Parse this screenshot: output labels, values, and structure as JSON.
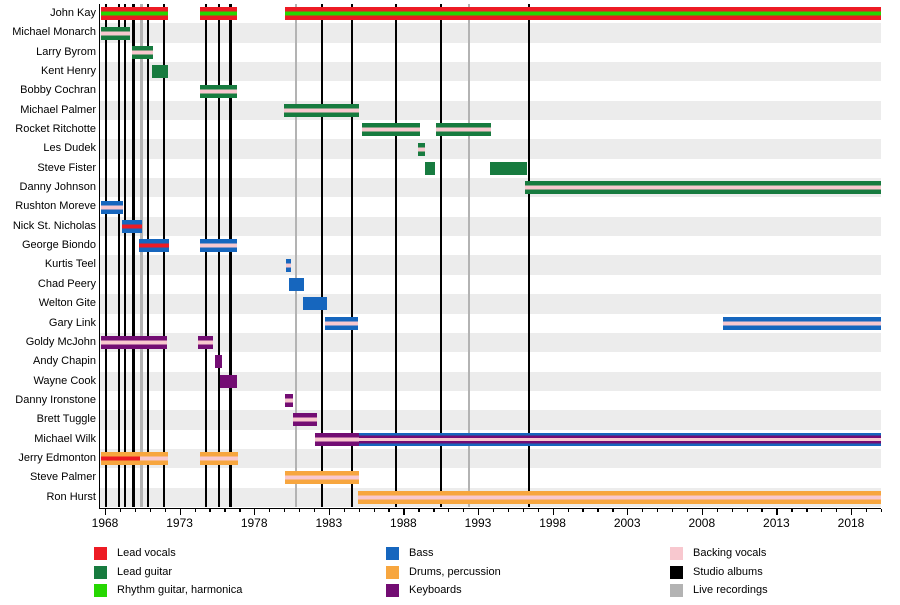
{
  "chart_data": {
    "type": "timeline",
    "description": "Band membership timeline, roles shown as colored bars per member, vertical lines mark album releases",
    "x_axis": {
      "major_tick_years": [
        1968,
        1973,
        1978,
        1983,
        1988,
        1993,
        1998,
        2003,
        2008,
        2013,
        2018
      ],
      "minor_tick_every_year_from": 1968,
      "minor_tick_every_year_to": 2020,
      "axis_min_year": 1967.6,
      "axis_max_year": 2020.1
    },
    "legend": [
      {
        "key": "lead_vocals",
        "label": "Lead vocals",
        "color": "#ed1b24",
        "column": 1
      },
      {
        "key": "lead_guitar",
        "label": "Lead guitar",
        "color": "#177b3f",
        "column": 1
      },
      {
        "key": "rhythm_guitar",
        "label": "Rhythm guitar, harmonica",
        "color": "#26d701",
        "column": 1
      },
      {
        "key": "bass",
        "label": "Bass",
        "color": "#1666be",
        "column": 2
      },
      {
        "key": "drums",
        "label": "Drums, percussion",
        "color": "#f7a63f",
        "column": 2
      },
      {
        "key": "keyboards",
        "label": "Keyboards",
        "color": "#730d73",
        "column": 2
      },
      {
        "key": "backing_vocals",
        "label": "Backing vocals",
        "color": "#f8c8cf",
        "column": 3
      },
      {
        "key": "studio_albums",
        "label": "Studio albums",
        "color": "#000000",
        "column": 3
      },
      {
        "key": "live_recordings",
        "label": "Live recordings",
        "color": "#b3b3b3",
        "column": 3
      }
    ],
    "members": [
      {
        "name": "John Kay",
        "bars": [
          {
            "start": 1967.7,
            "end": 1972.25,
            "roles": [
              "lead_vocals",
              "rhythm_guitar"
            ]
          },
          {
            "start": 1974.35,
            "end": 1976.85,
            "roles": [
              "lead_vocals",
              "rhythm_guitar"
            ]
          },
          {
            "start": 1980.05,
            "end": 2020.0,
            "roles": [
              "lead_vocals",
              "rhythm_guitar"
            ]
          }
        ]
      },
      {
        "name": "Michael Monarch",
        "bars": [
          {
            "start": 1967.7,
            "end": 1969.65,
            "roles": [
              "lead_guitar",
              "backing_vocals"
            ]
          }
        ]
      },
      {
        "name": "Larry Byrom",
        "bars": [
          {
            "start": 1969.8,
            "end": 1971.25,
            "roles": [
              "lead_guitar",
              "backing_vocals"
            ]
          }
        ]
      },
      {
        "name": "Kent Henry",
        "bars": [
          {
            "start": 1971.15,
            "end": 1972.25,
            "roles": [
              "lead_guitar"
            ]
          }
        ]
      },
      {
        "name": "Bobby Cochran",
        "bars": [
          {
            "start": 1974.35,
            "end": 1976.85,
            "roles": [
              "lead_guitar",
              "backing_vocals"
            ]
          }
        ]
      },
      {
        "name": "Michael Palmer",
        "bars": [
          {
            "start": 1980.0,
            "end": 1985.0,
            "roles": [
              "lead_guitar",
              "backing_vocals"
            ]
          }
        ]
      },
      {
        "name": "Rocket Ritchotte",
        "bars": [
          {
            "start": 1985.2,
            "end": 1989.1,
            "roles": [
              "lead_guitar",
              "backing_vocals"
            ]
          },
          {
            "start": 1990.2,
            "end": 1993.9,
            "roles": [
              "lead_guitar",
              "backing_vocals"
            ]
          }
        ]
      },
      {
        "name": "Les Dudek",
        "bars": [
          {
            "start": 1989.0,
            "end": 1989.45,
            "roles": [
              "lead_guitar",
              "backing_vocals"
            ]
          }
        ]
      },
      {
        "name": "Steve Fister",
        "bars": [
          {
            "start": 1989.45,
            "end": 1990.15,
            "roles": [
              "lead_guitar"
            ]
          },
          {
            "start": 1993.8,
            "end": 1996.3,
            "roles": [
              "lead_guitar"
            ]
          }
        ]
      },
      {
        "name": "Danny Johnson",
        "bars": [
          {
            "start": 1996.15,
            "end": 2020.0,
            "roles": [
              "lead_guitar",
              "backing_vocals"
            ]
          }
        ]
      },
      {
        "name": "Rushton Moreve",
        "bars": [
          {
            "start": 1967.7,
            "end": 1969.2,
            "roles": [
              "bass",
              "backing_vocals"
            ]
          }
        ]
      },
      {
        "name": "Nick St. Nicholas",
        "bars": [
          {
            "start": 1969.15,
            "end": 1970.45,
            "roles": [
              "bass",
              "lead_vocals"
            ]
          }
        ]
      },
      {
        "name": "George Biondo",
        "bars": [
          {
            "start": 1970.25,
            "end": 1972.3,
            "roles": [
              "bass",
              "lead_vocals"
            ]
          },
          {
            "start": 1974.35,
            "end": 1976.85,
            "roles": [
              "bass",
              "backing_vocals"
            ]
          }
        ]
      },
      {
        "name": "Kurtis Teel",
        "bars": [
          {
            "start": 1980.1,
            "end": 1980.5,
            "roles": [
              "bass",
              "backing_vocals"
            ]
          }
        ]
      },
      {
        "name": "Chad Peery",
        "bars": [
          {
            "start": 1980.35,
            "end": 1981.35,
            "roles": [
              "bass"
            ]
          }
        ]
      },
      {
        "name": "Welton Gite",
        "bars": [
          {
            "start": 1981.3,
            "end": 1982.85,
            "roles": [
              "bass"
            ]
          }
        ]
      },
      {
        "name": "Gary Link",
        "bars": [
          {
            "start": 1982.75,
            "end": 1984.95,
            "roles": [
              "bass",
              "backing_vocals"
            ]
          },
          {
            "start": 2009.4,
            "end": 2020.0,
            "roles": [
              "bass",
              "backing_vocals"
            ]
          }
        ]
      },
      {
        "name": "Goldy McJohn",
        "bars": [
          {
            "start": 1967.7,
            "end": 1972.15,
            "roles": [
              "keyboards",
              "backing_vocals"
            ]
          },
          {
            "start": 1974.25,
            "end": 1975.25,
            "roles": [
              "keyboards",
              "backing_vocals"
            ]
          }
        ]
      },
      {
        "name": "Andy Chapin",
        "bars": [
          {
            "start": 1975.35,
            "end": 1975.85,
            "roles": [
              "keyboards"
            ]
          }
        ]
      },
      {
        "name": "Wayne Cook",
        "bars": [
          {
            "start": 1975.7,
            "end": 1976.85,
            "roles": [
              "keyboards"
            ]
          }
        ]
      },
      {
        "name": "Danny Ironstone",
        "bars": [
          {
            "start": 1980.05,
            "end": 1980.6,
            "roles": [
              "keyboards",
              "backing_vocals"
            ]
          }
        ]
      },
      {
        "name": "Brett Tuggle",
        "bars": [
          {
            "start": 1980.6,
            "end": 1982.2,
            "roles": [
              "keyboards",
              "backing_vocals"
            ]
          }
        ]
      },
      {
        "name": "Michael Wilk",
        "bars": [
          {
            "start": 1982.1,
            "end": 1985.0,
            "roles": [
              "keyboards",
              "backing_vocals"
            ]
          },
          {
            "start": 1985.0,
            "end": 2020.0,
            "roles": [
              "bass",
              "keyboards",
              "backing_vocals"
            ]
          }
        ]
      },
      {
        "name": "Jerry Edmonton",
        "bars": [
          {
            "start": 1967.7,
            "end": 1970.35,
            "roles": [
              "drums",
              "lead_vocals"
            ]
          },
          {
            "start": 1970.35,
            "end": 1972.25,
            "roles": [
              "drums",
              "backing_vocals"
            ]
          },
          {
            "start": 1974.35,
            "end": 1976.9,
            "roles": [
              "drums",
              "backing_vocals"
            ]
          }
        ]
      },
      {
        "name": "Steve Palmer",
        "bars": [
          {
            "start": 1980.05,
            "end": 1985.05,
            "roles": [
              "drums",
              "backing_vocals"
            ]
          }
        ]
      },
      {
        "name": "Ron Hurst",
        "bars": [
          {
            "start": 1984.95,
            "end": 2020.0,
            "roles": [
              "drums",
              "backing_vocals"
            ]
          }
        ]
      }
    ],
    "releases": {
      "studio_album_years": [
        1968.05,
        1968.95,
        1969.35,
        1969.9,
        1970.9,
        1971.95,
        1974.75,
        1975.65,
        1976.4,
        1982.55,
        1984.55,
        1987.5,
        1990.5,
        1996.4
      ],
      "live_recording_years": [
        1970.45,
        1980.8,
        1992.4
      ]
    }
  }
}
